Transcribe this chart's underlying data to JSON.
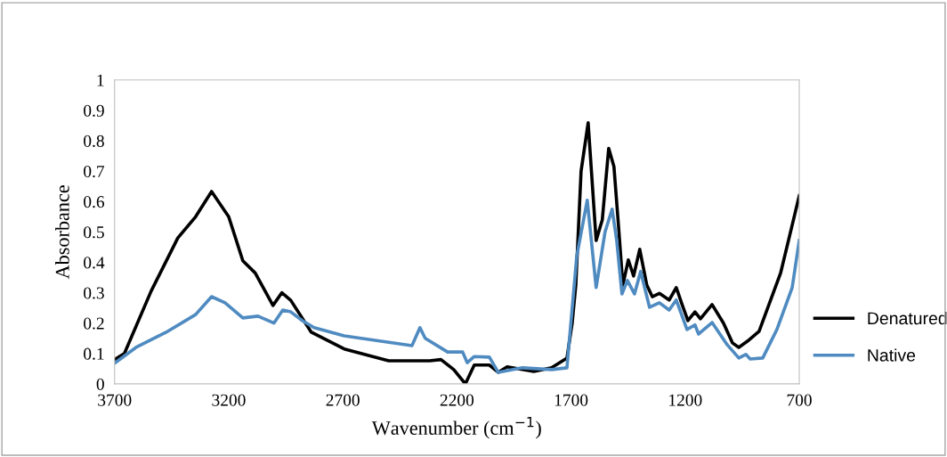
{
  "chart_data": {
    "type": "line",
    "xlabel": "Wavenumber (cm$^{−1}$)",
    "ylabel": "Absorbance",
    "xlim": [
      3700,
      700
    ],
    "xticks": [
      3700,
      3200,
      2700,
      2200,
      1700,
      1200,
      700
    ],
    "ylim": [
      0,
      1
    ],
    "yticks": [
      0,
      0.1,
      0.2,
      0.3,
      0.4,
      0.5,
      0.6,
      0.7,
      0.8,
      0.9,
      1
    ],
    "grid": false,
    "legend": "right",
    "marker": "none",
    "line_style": "solid",
    "series": [
      {
        "name": "Denatured",
        "color": "#000000",
        "x": [
          3696,
          3657,
          3540,
          3423,
          3345,
          3275,
          3200,
          3138,
          3084,
          3006,
          2967,
          2928,
          2838,
          2694,
          2499,
          2319,
          2270,
          2214,
          2163,
          2124,
          2058,
          2019,
          1980,
          1863,
          1785,
          1718,
          1695,
          1679,
          1656,
          1625,
          1590,
          1563,
          1535,
          1512,
          1492,
          1473,
          1449,
          1426,
          1399,
          1368,
          1344,
          1313,
          1270,
          1239,
          1212,
          1188,
          1157,
          1133,
          1082,
          1032,
          993,
          965,
          926,
          876,
          782,
          700
        ],
        "values": [
          0.082,
          0.1,
          0.305,
          0.48,
          0.55,
          0.633,
          0.55,
          0.405,
          0.365,
          0.258,
          0.3,
          0.275,
          0.17,
          0.115,
          0.076,
          0.076,
          0.08,
          0.047,
          0.0,
          0.062,
          0.062,
          0.038,
          0.056,
          0.041,
          0.053,
          0.085,
          0.2,
          0.326,
          0.7,
          0.859,
          0.472,
          0.54,
          0.775,
          0.715,
          0.52,
          0.325,
          0.408,
          0.355,
          0.443,
          0.325,
          0.287,
          0.298,
          0.276,
          0.317,
          0.258,
          0.208,
          0.237,
          0.214,
          0.261,
          0.2,
          0.135,
          0.12,
          0.141,
          0.173,
          0.364,
          0.619
        ]
      },
      {
        "name": "Native",
        "color": "#4f8bc1",
        "x": [
          3696,
          3606,
          3474,
          3345,
          3275,
          3216,
          3138,
          3072,
          3002,
          2963,
          2928,
          2877,
          2826,
          2694,
          2397,
          2362,
          2339,
          2241,
          2175,
          2155,
          2124,
          2058,
          2019,
          1913,
          1785,
          1718,
          1675,
          1629,
          1590,
          1551,
          1520,
          1500,
          1477,
          1453,
          1422,
          1395,
          1356,
          1313,
          1270,
          1239,
          1192,
          1157,
          1141,
          1082,
          1016,
          965,
          934,
          915,
          860,
          798,
          731,
          700
        ],
        "values": [
          0.07,
          0.12,
          0.17,
          0.228,
          0.287,
          0.267,
          0.217,
          0.223,
          0.2,
          0.243,
          0.237,
          0.208,
          0.185,
          0.158,
          0.126,
          0.185,
          0.15,
          0.105,
          0.105,
          0.07,
          0.09,
          0.088,
          0.038,
          0.053,
          0.047,
          0.053,
          0.42,
          0.604,
          0.317,
          0.5,
          0.575,
          0.472,
          0.296,
          0.34,
          0.296,
          0.37,
          0.252,
          0.267,
          0.243,
          0.276,
          0.179,
          0.194,
          0.164,
          0.202,
          0.129,
          0.085,
          0.097,
          0.082,
          0.085,
          0.179,
          0.317,
          0.472
        ]
      }
    ]
  }
}
